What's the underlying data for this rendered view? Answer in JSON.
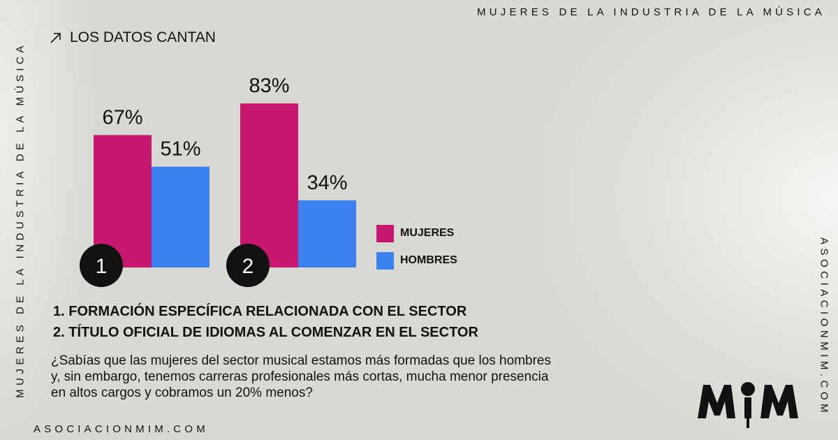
{
  "header": {
    "title": "MUJERES DE LA INDUSTRIA DE LA MÚSICA",
    "section_label": "LOS DATOS CANTAN"
  },
  "side": {
    "left_text": "MUJERES DE LA INDUSTRIA DE LA MÚSICA",
    "right_text": "ASOCIACIONMIM.COM"
  },
  "footer": {
    "url": "ASOCIACIONMIM.COM"
  },
  "icons": {
    "section": "arrow-up-right-icon",
    "logo": "mim-logo"
  },
  "colors": {
    "mujeres": "#c8176f",
    "hombres": "#3b82f0",
    "background": "#d9d9d3"
  },
  "chart_data": {
    "type": "bar",
    "categories": [
      "1",
      "2"
    ],
    "series": [
      {
        "name": "MUJERES",
        "values": [
          67,
          83
        ]
      },
      {
        "name": "HOMBRES",
        "values": [
          51,
          34
        ]
      }
    ],
    "value_labels": [
      [
        "67%",
        "83%"
      ],
      [
        "51%",
        "34%"
      ]
    ],
    "ylim": [
      0,
      100
    ],
    "legend_position": "right",
    "grid": false
  },
  "legend": {
    "mujeres": "MUJERES",
    "hombres": "HOMBRES"
  },
  "notes": [
    "1. FORMACIÓN ESPECÍFICA RELACIONADA CON EL SECTOR",
    "2. TÍTULO OFICIAL DE IDIOMAS AL COMENZAR EN EL SECTOR"
  ],
  "description": {
    "line1": "¿Sabías que las mujeres del sector musical estamos más formadas que los hombres",
    "line2": "y, sin embargo, tenemos carreras profesionales más cortas, mucha menor presencia",
    "line3": "en altos cargos y cobramos un 20% menos?"
  }
}
